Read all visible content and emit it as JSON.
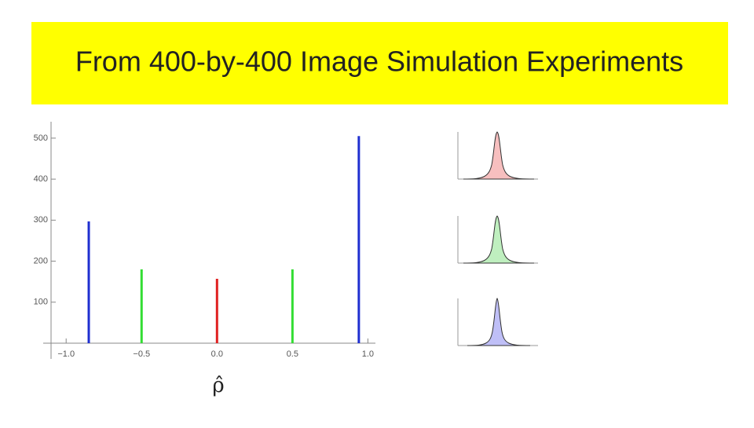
{
  "chart_data": {
    "type": "bar",
    "title": "From 400-by-400 Image Simulation Experiments",
    "x_label": "ρ̂",
    "x": [
      -0.85,
      -0.5,
      0,
      0.5,
      0.94
    ],
    "values": [
      297,
      180,
      157,
      180,
      505
    ],
    "colors": [
      "#1f2fd0",
      "#33dd33",
      "#e02020",
      "#33dd33",
      "#1f2fd0"
    ],
    "xlim": [
      -1.1,
      1.05
    ],
    "xticks": [
      {
        "value": -1,
        "label": "−1.0"
      },
      {
        "value": -0.5,
        "label": "−0.5"
      },
      {
        "value": 0,
        "label": "0.0"
      },
      {
        "value": 0.5,
        "label": "0.5"
      },
      {
        "value": 1,
        "label": "1.0"
      }
    ],
    "ylim": [
      0,
      540
    ],
    "yticks": [
      100,
      200,
      300,
      400,
      500
    ]
  }
}
